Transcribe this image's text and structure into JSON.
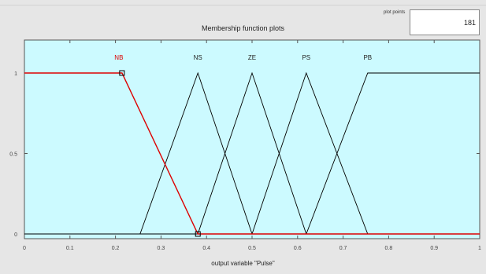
{
  "window": {
    "title": "Membership function plots",
    "plot_points_label": "plot points",
    "plot_points_value": "181"
  },
  "colors": {
    "plot_background": "#ccfaff",
    "curve": "#000000",
    "selected_curve": "#dd0000",
    "window_background": "#e6e6e6"
  },
  "chart_data": {
    "type": "line",
    "title": "Membership function plots",
    "xlabel": "output variable \"Pulse\"",
    "ylabel": "",
    "xlim": [
      0,
      1
    ],
    "ylim": [
      0,
      1
    ],
    "x_ticks": [
      "0",
      "0.1",
      "0.2",
      "0.3",
      "0.4",
      "0.5",
      "0.6",
      "0.7",
      "0.8",
      "0.9",
      "1"
    ],
    "y_ticks": [
      "0",
      "0.5",
      "1"
    ],
    "grid": false,
    "selected_series": "NB",
    "series": [
      {
        "name": "NB",
        "x": [
          0,
          0.2143,
          0.381,
          1
        ],
        "y": [
          1,
          1,
          0,
          0
        ]
      },
      {
        "name": "NS",
        "x": [
          0,
          0.254,
          0.381,
          0.5,
          1
        ],
        "y": [
          0,
          0,
          1,
          0,
          0
        ]
      },
      {
        "name": "ZE",
        "x": [
          0,
          0.381,
          0.5,
          0.619,
          1
        ],
        "y": [
          0,
          0,
          1,
          0,
          0
        ]
      },
      {
        "name": "PS",
        "x": [
          0,
          0.5,
          0.619,
          0.754,
          1
        ],
        "y": [
          0,
          0,
          1,
          0,
          0
        ]
      },
      {
        "name": "PB",
        "x": [
          0,
          0.619,
          0.754,
          1
        ],
        "y": [
          0,
          0,
          1,
          1
        ]
      }
    ]
  }
}
